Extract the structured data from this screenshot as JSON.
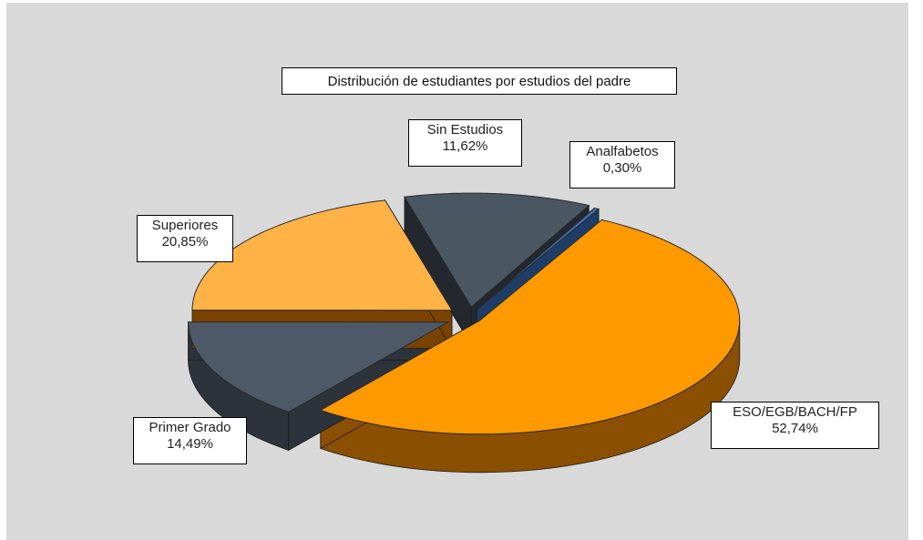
{
  "chart_data": {
    "type": "pie",
    "title": "Distribución de estudiantes por estudios del padre",
    "slices": [
      {
        "label": "ESO/EGB/BACH/FP",
        "value": 52.74,
        "display": "52,74%",
        "color": "#ff9900",
        "side_color": "#8a4f00"
      },
      {
        "label": "Primer Grado",
        "value": 14.49,
        "display": "14,49%",
        "color": "#4d5966",
        "side_color": "#2c333b"
      },
      {
        "label": "Superiores",
        "value": 20.85,
        "display": "20,85%",
        "color": "#ffb347",
        "side_color": "#7a4200"
      },
      {
        "label": "Sin Estudios",
        "value": 11.62,
        "display": "11,62%",
        "color": "#4a5763",
        "side_color": "#22282e"
      },
      {
        "label": "Analfabetos",
        "value": 0.3,
        "display": "0,30%",
        "color": "#3a6fb0",
        "side_color": "#1e3d66"
      }
    ],
    "legend": "none",
    "explode": true
  }
}
